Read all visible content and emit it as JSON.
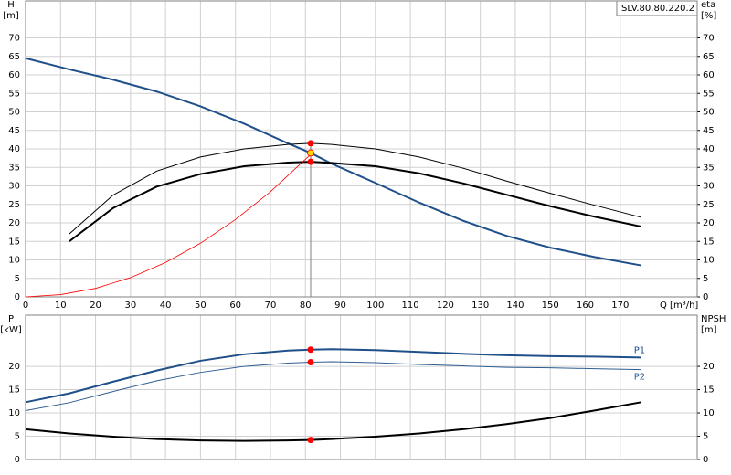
{
  "chart_data": [
    {
      "type": "line",
      "label_box": "SLV.80.80.220.2",
      "y_label": "H",
      "y_unit": "[m]",
      "y2_label": "eta",
      "y2_unit": "[%]",
      "x_label": "Q [m³/h]",
      "xlim": [
        0,
        192
      ],
      "xticks": [
        0,
        10,
        20,
        30,
        40,
        50,
        60,
        70,
        80,
        90,
        100,
        110,
        120,
        130,
        140,
        150,
        160,
        170
      ],
      "ylim": [
        0,
        80
      ],
      "yticks": [
        0,
        5,
        10,
        15,
        20,
        25,
        30,
        35,
        40,
        45,
        50,
        55,
        60,
        65,
        70
      ],
      "y2lim": [
        0,
        80
      ],
      "y2ticks": [
        0,
        5,
        10,
        15,
        20,
        25,
        30,
        35,
        40,
        45,
        50,
        55,
        60,
        65,
        70
      ],
      "grid": true,
      "show_xtick_labels": true,
      "cursor": {
        "x": 81.5,
        "y": 38.9
      },
      "series": [
        {
          "color": "#20508a",
          "line_width": 2,
          "marker_color": "#ffd700",
          "x": [
            0,
            12.5,
            25,
            37.5,
            50,
            62.5,
            75,
            81.5,
            87.5,
            100,
            112.5,
            125,
            137.5,
            150,
            162.5,
            176
          ],
          "values": [
            64.5,
            61.5,
            58.7,
            55.5,
            51.5,
            46.8,
            41.5,
            38.9,
            36,
            30.8,
            25.5,
            20.6,
            16.5,
            13.3,
            10.8,
            8.5
          ]
        },
        {
          "color": "#000000",
          "line_width": 1,
          "marker_color": "#ff0000",
          "axis": "y2",
          "x": [
            12.5,
            25,
            37.5,
            50,
            62.5,
            75,
            81.5,
            87.5,
            100,
            112.5,
            125,
            137.5,
            150,
            162.5,
            176
          ],
          "values": [
            17,
            27.5,
            34,
            37.8,
            40,
            41.2,
            41.5,
            41.2,
            40,
            37.8,
            34.8,
            31.3,
            28,
            24.8,
            21.5
          ]
        },
        {
          "color": "#000000",
          "line_width": 2,
          "marker_color": "#ff0000",
          "axis": "y2",
          "x": [
            12.5,
            25,
            37.5,
            50,
            62.5,
            75,
            81.5,
            87.5,
            100,
            112.5,
            125,
            137.5,
            150,
            162.5,
            176
          ],
          "values": [
            15,
            24,
            29.8,
            33.2,
            35.3,
            36.3,
            36.5,
            36.2,
            35.3,
            33.4,
            30.7,
            27.6,
            24.5,
            21.7,
            19
          ]
        },
        {
          "color": "#ff0000",
          "line_width": 0.8,
          "x": [
            0,
            10,
            20,
            30,
            40,
            50,
            60,
            70,
            81.5
          ],
          "values": [
            0,
            0.6,
            2.3,
            5.2,
            9.3,
            14.5,
            20.9,
            28.4,
            38.5
          ]
        }
      ]
    },
    {
      "type": "line",
      "y_label": "P",
      "y_unit": "[kW]",
      "y2_label": "NPSH",
      "y2_unit": "[m]",
      "xlim": [
        0,
        192
      ],
      "xticks": [
        0,
        10,
        20,
        30,
        40,
        50,
        60,
        70,
        80,
        90,
        100,
        110,
        120,
        130,
        140,
        150,
        160,
        170
      ],
      "ylim": [
        0,
        31
      ],
      "yticks": [
        0,
        5,
        10,
        15,
        20
      ],
      "y2lim": [
        0,
        31
      ],
      "y2ticks": [
        0,
        5,
        10,
        15,
        20
      ],
      "grid": true,
      "show_xtick_labels": false,
      "cursor": {
        "x": 81.5
      },
      "series": [
        {
          "name": "P1",
          "color": "#20508a",
          "line_width": 2,
          "marker_color": "#ff0000",
          "x": [
            0,
            12.5,
            25,
            37.5,
            50,
            62.5,
            75,
            81.5,
            87.5,
            100,
            112.5,
            125,
            137.5,
            150,
            162.5,
            176
          ],
          "values": [
            12.3,
            14.2,
            16.7,
            19.1,
            21.2,
            22.6,
            23.4,
            23.6,
            23.7,
            23.5,
            23.1,
            22.7,
            22.4,
            22.2,
            22.1,
            21.9
          ]
        },
        {
          "name": "P2",
          "color": "#2e5d91",
          "line_width": 1,
          "marker_color": "#ff0000",
          "x": [
            0,
            12.5,
            25,
            37.5,
            50,
            62.5,
            75,
            81.5,
            87.5,
            100,
            112.5,
            125,
            137.5,
            150,
            162.5,
            176
          ],
          "values": [
            10.5,
            12.2,
            14.6,
            16.9,
            18.7,
            20,
            20.7,
            20.9,
            21,
            20.8,
            20.4,
            20.1,
            19.8,
            19.7,
            19.5,
            19.3
          ]
        },
        {
          "color": "#000000",
          "line_width": 2,
          "marker_color": "#ff0000",
          "axis": "y2",
          "x": [
            0,
            12.5,
            25,
            37.5,
            50,
            62.5,
            75,
            81.5,
            87.5,
            100,
            112.5,
            125,
            137.5,
            150,
            162.5,
            176
          ],
          "values": [
            6.5,
            5.6,
            4.9,
            4.4,
            4.1,
            4.0,
            4.1,
            4.2,
            4.4,
            4.9,
            5.6,
            6.5,
            7.6,
            8.9,
            10.5,
            12.3
          ]
        }
      ]
    }
  ]
}
